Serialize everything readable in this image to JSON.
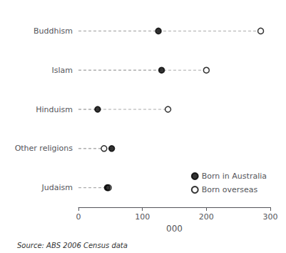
{
  "chart_data": {
    "type": "dot",
    "orientation": "horizontal",
    "categories": [
      "Judaism",
      "Other religions",
      "Hinduism",
      "Islam",
      "Buddhism"
    ],
    "series": [
      {
        "name": "Born in Australia",
        "color": "#000000",
        "marker": "filled",
        "values": [
          45,
          52,
          30,
          130,
          125
        ]
      },
      {
        "name": "Born overseas",
        "color": "#000000",
        "marker": "open",
        "values": [
          47,
          40,
          140,
          200,
          285
        ]
      }
    ],
    "xlabel": "000",
    "xlim": [
      0,
      300
    ],
    "xticks": [
      0,
      100,
      200,
      300
    ],
    "annotation": "Source: ABS 2006 Census data",
    "grid": false,
    "legend": "lower right"
  }
}
